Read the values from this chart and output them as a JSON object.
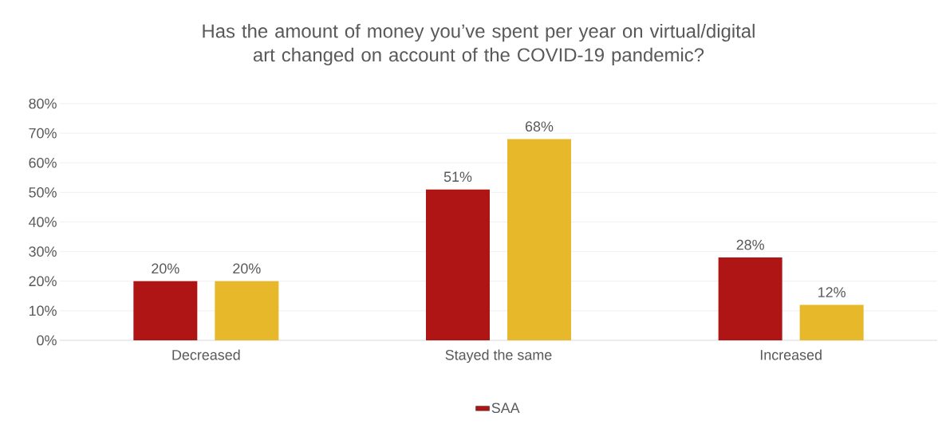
{
  "chart_data": {
    "type": "bar",
    "title": "Has the amount of money you’ve spent per year on virtual/digital art changed on account of the COVID-19 pandemic?",
    "categories": [
      "Decreased",
      "Stayed the same",
      "Increased"
    ],
    "series": [
      {
        "name": "SAA",
        "color": "#b01515",
        "values": [
          20,
          51,
          28
        ],
        "value_labels": [
          "20%",
          "51%",
          "28%"
        ]
      },
      {
        "color": "#e6b82a",
        "values": [
          20,
          68,
          12
        ],
        "value_labels": [
          "20%",
          "68%",
          "12%"
        ]
      }
    ],
    "ylim": [
      0,
      80
    ],
    "yticks": [
      {
        "value": 0,
        "label": "0%"
      },
      {
        "value": 10,
        "label": "10%"
      },
      {
        "value": 20,
        "label": "20%"
      },
      {
        "value": 30,
        "label": "30%"
      },
      {
        "value": 40,
        "label": "40%"
      },
      {
        "value": 50,
        "label": "50%"
      },
      {
        "value": 60,
        "label": "60%"
      },
      {
        "value": 70,
        "label": "70%"
      },
      {
        "value": 80,
        "label": "80%"
      }
    ],
    "grid": "y",
    "legend": "bottom"
  }
}
